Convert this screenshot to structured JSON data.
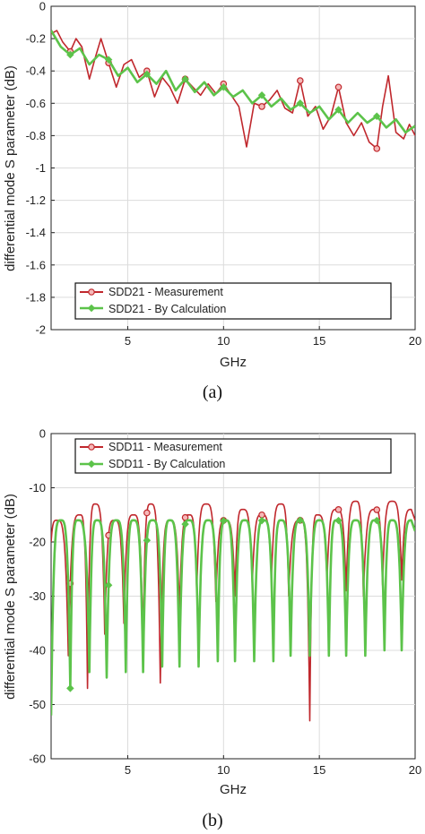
{
  "chart_data": [
    {
      "type": "line",
      "caption": "(a)",
      "xlabel": "GHz",
      "ylabel": "differential mode S parameter (dB)",
      "xlim": [
        1,
        20
      ],
      "ylim": [
        -2,
        0
      ],
      "xticks": [
        5,
        10,
        15,
        20
      ],
      "yticks": [
        0,
        -0.2,
        -0.4,
        -0.6,
        -0.8,
        -1,
        -1.2,
        -1.4,
        -1.6,
        -1.8,
        -2
      ],
      "ytick_labels": [
        "0",
        "-0.2",
        "-0.4",
        "-0.6",
        "-0.8",
        "-1",
        "-1.2",
        "-1.4",
        "-1.6",
        "-1.8",
        "-2"
      ],
      "xtick_labels": [
        "5",
        "10",
        "15",
        "20"
      ],
      "grid": true,
      "legend_position": "bottom-left",
      "series": [
        {
          "name": "SDD21 - Measurement",
          "color": "#c0282d",
          "marker": "circle",
          "marker_x": [
            2,
            4,
            6,
            8,
            10,
            12,
            14,
            16,
            18
          ],
          "x": [
            1,
            1.3,
            1.6,
            2.0,
            2.3,
            2.6,
            3.0,
            3.3,
            3.6,
            4.0,
            4.4,
            4.8,
            5.2,
            5.6,
            6.0,
            6.4,
            6.8,
            7.2,
            7.6,
            8.0,
            8.4,
            8.8,
            9.2,
            9.6,
            10.0,
            10.4,
            10.8,
            11.2,
            11.6,
            12.0,
            12.4,
            12.8,
            13.2,
            13.6,
            14.0,
            14.4,
            14.8,
            15.2,
            15.6,
            16.0,
            16.4,
            16.8,
            17.2,
            17.6,
            18.0,
            18.3,
            18.6,
            19.0,
            19.4,
            19.7,
            20
          ],
          "y": [
            -0.17,
            -0.15,
            -0.22,
            -0.28,
            -0.2,
            -0.25,
            -0.45,
            -0.32,
            -0.2,
            -0.35,
            -0.5,
            -0.36,
            -0.33,
            -0.44,
            -0.4,
            -0.56,
            -0.44,
            -0.5,
            -0.6,
            -0.45,
            -0.5,
            -0.55,
            -0.48,
            -0.54,
            -0.48,
            -0.55,
            -0.62,
            -0.87,
            -0.6,
            -0.62,
            -0.58,
            -0.52,
            -0.63,
            -0.66,
            -0.46,
            -0.68,
            -0.62,
            -0.76,
            -0.68,
            -0.5,
            -0.72,
            -0.8,
            -0.72,
            -0.84,
            -0.88,
            -0.62,
            -0.43,
            -0.78,
            -0.82,
            -0.73,
            -0.8
          ]
        },
        {
          "name": "SDD21 - By Calculation",
          "color": "#5cc34a",
          "marker": "diamond",
          "marker_x": [
            2,
            4,
            6,
            8,
            10,
            12,
            14,
            16,
            18
          ],
          "x": [
            1,
            1.5,
            2.0,
            2.5,
            3.0,
            3.5,
            4.0,
            4.5,
            5.0,
            5.5,
            6.0,
            6.5,
            7.0,
            7.5,
            8.0,
            8.5,
            9.0,
            9.5,
            10.0,
            10.5,
            11.0,
            11.5,
            12.0,
            12.5,
            13.0,
            13.5,
            14.0,
            14.5,
            15.0,
            15.5,
            16.0,
            16.5,
            17.0,
            17.5,
            18.0,
            18.5,
            19.0,
            19.5,
            20
          ],
          "y": [
            -0.15,
            -0.25,
            -0.3,
            -0.26,
            -0.36,
            -0.3,
            -0.33,
            -0.43,
            -0.38,
            -0.47,
            -0.42,
            -0.48,
            -0.4,
            -0.52,
            -0.45,
            -0.53,
            -0.47,
            -0.55,
            -0.5,
            -0.56,
            -0.52,
            -0.6,
            -0.55,
            -0.62,
            -0.57,
            -0.64,
            -0.6,
            -0.66,
            -0.62,
            -0.7,
            -0.64,
            -0.72,
            -0.66,
            -0.72,
            -0.68,
            -0.75,
            -0.7,
            -0.78,
            -0.74
          ]
        }
      ]
    },
    {
      "type": "line",
      "caption": "(b)",
      "xlabel": "GHz",
      "ylabel": "differential mode S parameter (dB)",
      "xlim": [
        1,
        20
      ],
      "ylim": [
        -60,
        0
      ],
      "xticks": [
        5,
        10,
        15,
        20
      ],
      "yticks": [
        0,
        -10,
        -20,
        -30,
        -40,
        -50,
        -60
      ],
      "ytick_labels": [
        "0",
        "-10",
        "-20",
        "-30",
        "-40",
        "-50",
        "-60"
      ],
      "xtick_labels": [
        "5",
        "10",
        "15",
        "20"
      ],
      "grid": true,
      "legend_position": "top",
      "series": [
        {
          "name": "SDD11 - Measurement",
          "color": "#c0282d",
          "marker": "circle",
          "marker_x": [
            2,
            4,
            6,
            8,
            10,
            12,
            14,
            16,
            18
          ],
          "peaks_x": [
            1.3,
            2.5,
            3.3,
            4.3,
            5.3,
            6.2,
            7.2,
            8.2,
            9.1,
            10.1,
            11.0,
            12.0,
            13.0,
            14.0,
            14.9,
            15.9,
            16.9,
            17.9,
            18.8,
            19.8
          ],
          "peaks_y": [
            -16,
            -15,
            -13,
            -16,
            -15,
            -13,
            -16,
            -15,
            -13,
            -16,
            -14,
            -15,
            -13,
            -16,
            -15,
            -14,
            -12.5,
            -14,
            -12.5,
            -14
          ],
          "dips_x": [
            1.0,
            1.9,
            2.9,
            3.8,
            4.8,
            5.8,
            6.7,
            7.7,
            8.6,
            9.6,
            10.6,
            11.5,
            12.5,
            13.4,
            14.5,
            15.4,
            16.4,
            17.3,
            18.3,
            19.3
          ],
          "dips_y": [
            -20,
            -41,
            -47,
            -37,
            -35,
            -39,
            -46,
            -33,
            -29,
            -31,
            -30,
            -28,
            -27,
            -30,
            -53,
            -27,
            -29,
            -30,
            -28,
            -27
          ]
        },
        {
          "name": "SDD11 - By Calculation",
          "color": "#5cc34a",
          "marker": "diamond",
          "marker_x": [
            2,
            4,
            6,
            8,
            10,
            12,
            14,
            16,
            18
          ],
          "peaks_x": [
            1.5,
            2.4,
            3.4,
            4.4,
            5.3,
            6.3,
            7.2,
            8.2,
            9.2,
            10.1,
            11.1,
            12.1,
            13.0,
            14.0,
            15.0,
            15.9,
            16.9,
            17.9,
            18.8,
            19.8
          ],
          "peaks_y": [
            -16,
            -16,
            -16,
            -16,
            -16,
            -16,
            -16,
            -16,
            -16,
            -16,
            -16,
            -16,
            -16,
            -16,
            -16,
            -16,
            -16,
            -16,
            -16,
            -16
          ],
          "dips_x": [
            1.0,
            2.0,
            3.0,
            3.9,
            4.9,
            5.8,
            6.8,
            7.7,
            8.7,
            9.7,
            10.6,
            11.6,
            12.6,
            13.5,
            14.5,
            15.5,
            16.4,
            17.4,
            18.4,
            19.3
          ],
          "dips_y": [
            -52,
            -47,
            -44,
            -45,
            -44,
            -44,
            -43,
            -43,
            -43,
            -42,
            -42,
            -42,
            -42,
            -41,
            -41,
            -41,
            -41,
            -41,
            -40,
            -40
          ]
        }
      ]
    }
  ]
}
